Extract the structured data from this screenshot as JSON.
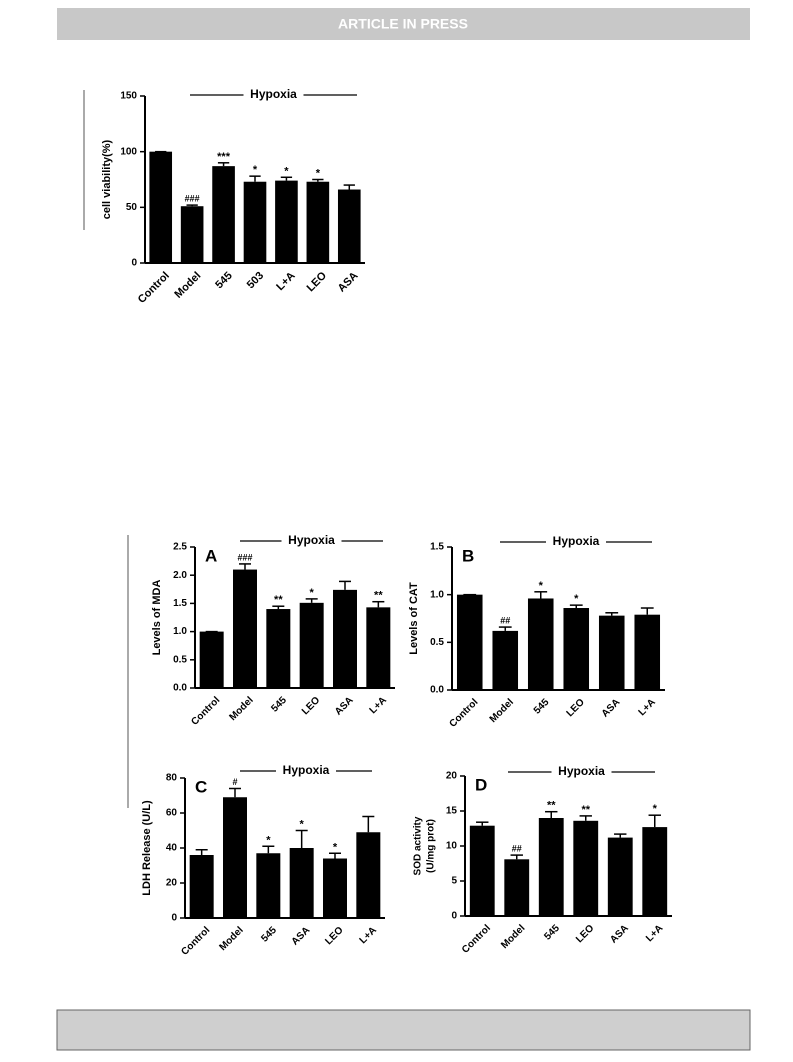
{
  "header": {
    "title": "ARTICLE IN PRESS"
  },
  "chart_data": [
    {
      "type": "bar",
      "ylabel": [
        "cell viability(%)"
      ],
      "bracket_label": "Hypoxia",
      "categories": [
        "Control",
        "Model",
        "545",
        "503",
        "L+A",
        "LEO",
        "ASA"
      ],
      "values": [
        100,
        51,
        87,
        73,
        74,
        73,
        66
      ],
      "errors": [
        0,
        1,
        3,
        5,
        3,
        2,
        4
      ],
      "annotations": [
        null,
        "###",
        "***",
        "*",
        "*",
        "*",
        null
      ],
      "ylim": [
        0,
        150
      ],
      "yticks": [
        0,
        50,
        100,
        150
      ],
      "color": "#000000"
    },
    {
      "type": "bar",
      "panel": "A",
      "ylabel": [
        "Levels of MDA"
      ],
      "bracket_label": "Hypoxia",
      "categories": [
        "Control",
        "Model",
        "545",
        "LEO",
        "ASA",
        "L+A"
      ],
      "values": [
        1.0,
        2.1,
        1.4,
        1.51,
        1.74,
        1.43
      ],
      "errors": [
        0,
        0.1,
        0.05,
        0.07,
        0.15,
        0.1
      ],
      "annotations": [
        null,
        "###",
        "**",
        "*",
        null,
        "**"
      ],
      "ylim": [
        0,
        2.5
      ],
      "yticks": [
        {
          "value": 0,
          "label": "0.0"
        },
        0.5,
        {
          "value": 1,
          "label": "1.0"
        },
        1.5,
        {
          "value": 2,
          "label": "2.0"
        },
        2.5
      ],
      "color": "#000000"
    },
    {
      "type": "bar",
      "panel": "B",
      "ylabel": [
        "Levels of CAT"
      ],
      "bracket_label": "Hypoxia",
      "categories": [
        "Control",
        "Model",
        "545",
        "LEO",
        "ASA",
        "L+A"
      ],
      "values": [
        1.0,
        0.62,
        0.96,
        0.86,
        0.78,
        0.79
      ],
      "errors": [
        0,
        0.04,
        0.07,
        0.03,
        0.03,
        0.07
      ],
      "annotations": [
        null,
        "##",
        "*",
        "*",
        null,
        null
      ],
      "ylim": [
        0,
        1.5
      ],
      "yticks": [
        {
          "value": 0,
          "label": "0.0"
        },
        0.5,
        {
          "value": 1,
          "label": "1.0"
        },
        1.5
      ],
      "color": "#000000"
    },
    {
      "type": "bar",
      "panel": "C",
      "ylabel": [
        "LDH Release (U/L)"
      ],
      "bracket_label": "Hypoxia",
      "categories": [
        "Control",
        "Model",
        "545",
        "ASA",
        "LEO",
        "L+A"
      ],
      "values": [
        36,
        69,
        37,
        40,
        34,
        49
      ],
      "errors": [
        3,
        5,
        4,
        10,
        3,
        9
      ],
      "annotations": [
        null,
        "#",
        "*",
        "*",
        "*",
        null
      ],
      "ylim": [
        0,
        80
      ],
      "yticks": [
        0,
        20,
        40,
        60,
        80
      ],
      "color": "#000000"
    },
    {
      "type": "bar",
      "panel": "D",
      "ylabel": [
        "SOD activity",
        "(U/mg prot)"
      ],
      "bracket_label": "Hypoxia",
      "categories": [
        "Control",
        "Model",
        "545",
        "LEO",
        "ASA",
        "L+A"
      ],
      "values": [
        12.9,
        8.1,
        14,
        13.6,
        11.2,
        12.7
      ],
      "errors": [
        0.5,
        0.6,
        0.9,
        0.7,
        0.5,
        1.7
      ],
      "annotations": [
        null,
        "##",
        "**",
        "**",
        null,
        "*"
      ],
      "ylim": [
        0,
        20
      ],
      "yticks": [
        0,
        5,
        10,
        15,
        20
      ],
      "color": "#000000"
    }
  ]
}
